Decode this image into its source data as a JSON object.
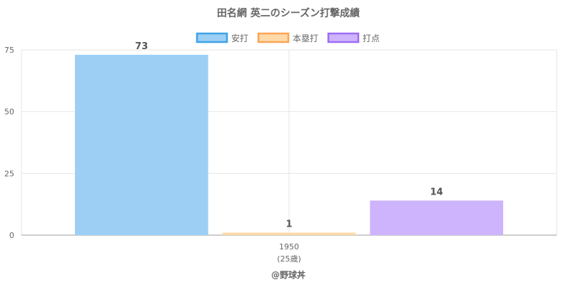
{
  "chart_data": {
    "type": "bar",
    "title": "田名網 英二のシーズン打撃成績",
    "categories": [
      "1950"
    ],
    "category_sublabels": [
      "(25歳)"
    ],
    "series": [
      {
        "name": "安打",
        "values": [
          73
        ],
        "color": "#9dcff5",
        "border_color": "#3ea2e6"
      },
      {
        "name": "本塁打",
        "values": [
          1
        ],
        "color": "#fcd9a8",
        "border_color": "#fba556"
      },
      {
        "name": "打点",
        "values": [
          14
        ],
        "color": "#ceb4fc",
        "border_color": "#9d6cf5"
      }
    ],
    "ylim": [
      0,
      75
    ],
    "yticks": [
      0,
      25,
      50,
      75
    ],
    "grid": true,
    "legend_position": "top",
    "xlabel": "",
    "ylabel": ""
  },
  "credit": "@野球丼"
}
